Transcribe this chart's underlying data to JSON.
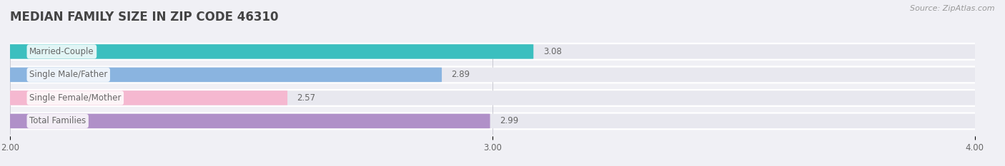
{
  "title": "MEDIAN FAMILY SIZE IN ZIP CODE 46310",
  "source": "Source: ZipAtlas.com",
  "categories": [
    "Married-Couple",
    "Single Male/Father",
    "Single Female/Mother",
    "Total Families"
  ],
  "values": [
    3.08,
    2.89,
    2.57,
    2.99
  ],
  "bar_colors": [
    "#3bbfbf",
    "#8ab4e0",
    "#f5b8d0",
    "#b090c8"
  ],
  "bar_bg_color": "#e8e8ef",
  "xlim": [
    2.0,
    4.0
  ],
  "xticks": [
    2.0,
    3.0,
    4.0
  ],
  "xtick_labels": [
    "2.00",
    "3.00",
    "4.00"
  ],
  "label_color": "#666666",
  "value_color": "#666666",
  "title_color": "#444444",
  "title_fontsize": 12,
  "label_fontsize": 8.5,
  "value_fontsize": 8.5,
  "source_fontsize": 8,
  "background_color": "#f0f0f5",
  "bar_height": 0.62,
  "row_bg_color": "#ffffff"
}
